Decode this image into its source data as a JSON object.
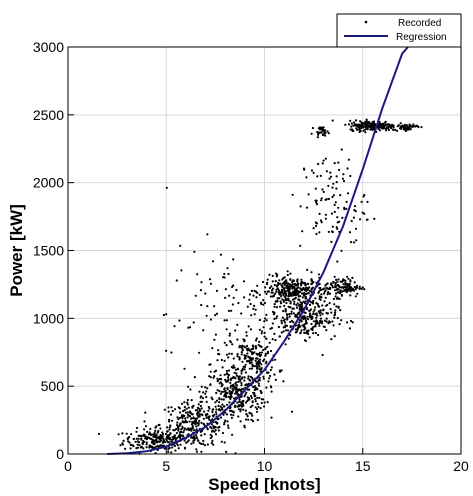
{
  "chart_data": {
    "type": "scatter",
    "xlabel": "Speed [knots]",
    "ylabel": "Power [kW]",
    "xlim": [
      0,
      20
    ],
    "ylim": [
      0,
      3000
    ],
    "xticks": [
      0,
      5,
      10,
      15,
      20
    ],
    "yticks": [
      0,
      500,
      1000,
      1500,
      2000,
      2500,
      3000
    ],
    "grid": true,
    "legend_position": "top-right",
    "legend": [
      {
        "label": "Recorded",
        "marker": "dot",
        "color": "#000000"
      },
      {
        "label": "Regression",
        "marker": "line",
        "color": "#1a1a80"
      }
    ],
    "series": [
      {
        "name": "Recorded",
        "kind": "scatter",
        "color": "#000000",
        "clusters": [
          {
            "x_center": 4.5,
            "y_center": 100,
            "x_spread": 1.4,
            "y_spread": 70,
            "count": 220
          },
          {
            "x_center": 6.5,
            "y_center": 220,
            "x_spread": 1.5,
            "y_spread": 140,
            "count": 300
          },
          {
            "x_center": 8.5,
            "y_center": 450,
            "x_spread": 1.3,
            "y_spread": 180,
            "count": 320
          },
          {
            "x_center": 9.5,
            "y_center": 700,
            "x_spread": 1.0,
            "y_spread": 150,
            "count": 160
          },
          {
            "x_center": 11.5,
            "y_center": 1200,
            "x_spread": 1.3,
            "y_spread": 90,
            "count": 320
          },
          {
            "x_center": 12.0,
            "y_center": 1000,
            "x_spread": 1.4,
            "y_spread": 120,
            "count": 260
          },
          {
            "x_center": 14.0,
            "y_center": 1230,
            "x_spread": 0.8,
            "y_spread": 60,
            "count": 120
          },
          {
            "x_center": 15.5,
            "y_center": 2420,
            "x_spread": 1.0,
            "y_spread": 30,
            "count": 220
          },
          {
            "x_center": 17.2,
            "y_center": 2410,
            "x_spread": 0.5,
            "y_spread": 20,
            "count": 50
          },
          {
            "x_center": 12.9,
            "y_center": 2380,
            "x_spread": 0.3,
            "y_spread": 25,
            "count": 30
          },
          {
            "x_center": 13.5,
            "y_center": 1850,
            "x_spread": 1.4,
            "y_spread": 320,
            "count": 110
          },
          {
            "x_center": 8.0,
            "y_center": 1000,
            "x_spread": 2.5,
            "y_spread": 450,
            "count": 120
          }
        ]
      },
      {
        "name": "Regression",
        "kind": "line",
        "color": "#1a1a80",
        "x": [
          2.0,
          3.0,
          4.0,
          5.0,
          6.0,
          7.0,
          8.0,
          9.0,
          10.0,
          11.0,
          12.0,
          13.0,
          14.0,
          15.0,
          16.0,
          17.0,
          17.3
        ],
        "y": [
          0,
          5,
          20,
          55,
          120,
          200,
          320,
          470,
          620,
          830,
          1060,
          1340,
          1680,
          2100,
          2550,
          2950,
          3000
        ]
      }
    ]
  }
}
